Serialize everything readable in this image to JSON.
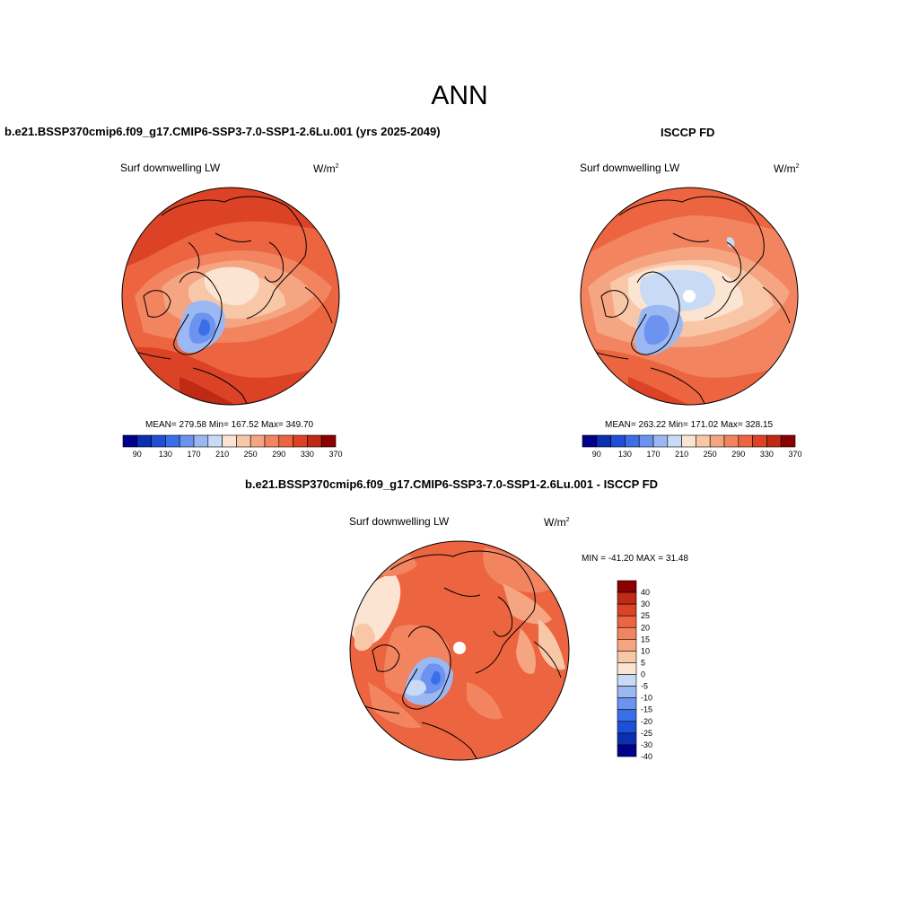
{
  "figure": {
    "title": "ANN"
  },
  "panels": [
    {
      "id": "model",
      "title": "b.e21.BSSP370cmip6.f09_g17.CMIP6-SSP3-7.0-SSP1-2.6Lu.001 (yrs 2025-2049)",
      "variable": "Surf downwelling LW",
      "units_base": "W/m",
      "units_exp": "2",
      "stats": "MEAN= 279.58  Min= 167.52  Max= 349.70"
    },
    {
      "id": "obs",
      "title": "ISCCP FD",
      "variable": "Surf downwelling LW",
      "units_base": "W/m",
      "units_exp": "2",
      "stats": "MEAN= 263.22  Min= 171.02  Max= 328.15"
    },
    {
      "id": "diff",
      "title": "b.e21.BSSP370cmip6.f09_g17.CMIP6-SSP3-7.0-SSP1-2.6Lu.001 - ISCCP FD",
      "variable": "Surf downwelling LW",
      "units_base": "W/m",
      "units_exp": "2",
      "stats": "MIN = -41.20 MAX =  31.48"
    }
  ],
  "colorbars": {
    "absolute": {
      "orientation": "horizontal",
      "colors": [
        "#00008b",
        "#0a2fb0",
        "#1f4fd6",
        "#3a6fe8",
        "#6b93ef",
        "#9cb8f2",
        "#c8daf5",
        "#fbe4d2",
        "#f8c7a8",
        "#f5a582",
        "#f2845f",
        "#ec6440",
        "#dc4326",
        "#be2a14",
        "#8b0000"
      ],
      "tick_labels": [
        "90",
        "130",
        "170",
        "210",
        "250",
        "290",
        "330",
        "370"
      ]
    },
    "difference": {
      "orientation": "vertical",
      "colors": [
        "#00008b",
        "#0a2fb0",
        "#1f4fd6",
        "#3a6fe8",
        "#6b93ef",
        "#9cb8f2",
        "#c8daf5",
        "#fbe4d2",
        "#f8c7a8",
        "#f5a582",
        "#f2845f",
        "#ec6440",
        "#dc4326",
        "#be2a14",
        "#8b0000"
      ],
      "tick_labels": [
        "-40",
        "-30",
        "-25",
        "-20",
        "-15",
        "-10",
        "-5",
        "0",
        "5",
        "10",
        "15",
        "20",
        "25",
        "30",
        "40"
      ]
    }
  },
  "colors": {
    "ocean_warm": "#ec6440",
    "deep_warm": "#dc4326",
    "light_warm": "#f8c7a8",
    "pale": "#fbe4d2",
    "cold": "#6b93ef",
    "deep_cold": "#3a6fe8",
    "light_cold": "#c8daf5",
    "coast": "#000000"
  }
}
